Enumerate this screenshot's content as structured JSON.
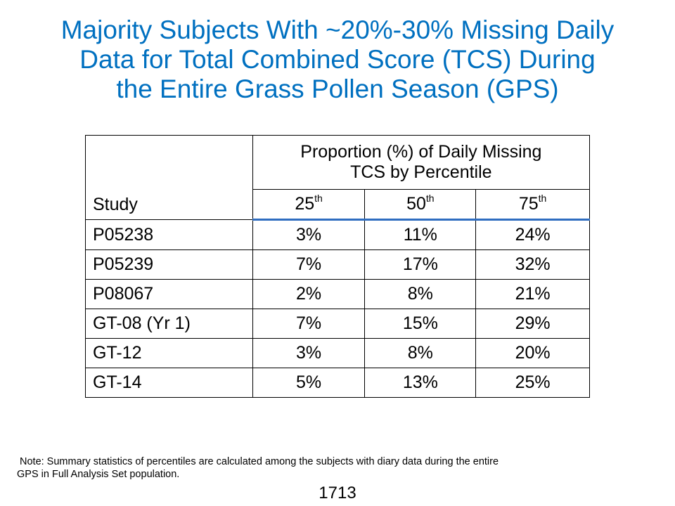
{
  "title": {
    "line1": "Majority Subjects With ~20%-30% Missing Daily",
    "line2": "Data for Total Combined Score (TCS) During",
    "line3": "the Entire Grass Pollen Season (GPS)"
  },
  "table": {
    "study_header": "Study",
    "group_header": {
      "line1": "Proportion (%) of Daily Missing",
      "line2": "TCS by Percentile"
    },
    "percentiles": [
      {
        "num": "25",
        "sup": "th"
      },
      {
        "num": "50",
        "sup": "th"
      },
      {
        "num": "75",
        "sup": "th"
      }
    ],
    "rows": [
      {
        "study": "P05238",
        "p25": "3%",
        "p50": "11%",
        "p75": "24%"
      },
      {
        "study": "P05239",
        "p25": "7%",
        "p50": "17%",
        "p75": "32%"
      },
      {
        "study": "P08067",
        "p25": "2%",
        "p50": "8%",
        "p75": "21%"
      },
      {
        "study": "GT-08 (Yr 1)",
        "p25": "7%",
        "p50": "15%",
        "p75": "29%"
      },
      {
        "study": "GT-12",
        "p25": "3%",
        "p50": "8%",
        "p75": "20%"
      },
      {
        "study": "GT-14",
        "p25": "5%",
        "p50": "13%",
        "p75": "25%"
      }
    ]
  },
  "note": {
    "line1": "Note: Summary statistics of percentiles are calculated among the subjects with diary data during the entire",
    "line2": "GPS in Full Analysis Set population."
  },
  "page_number": "1713",
  "colors": {
    "title": "#0070c0",
    "header_rule": "#2f6dc0"
  }
}
